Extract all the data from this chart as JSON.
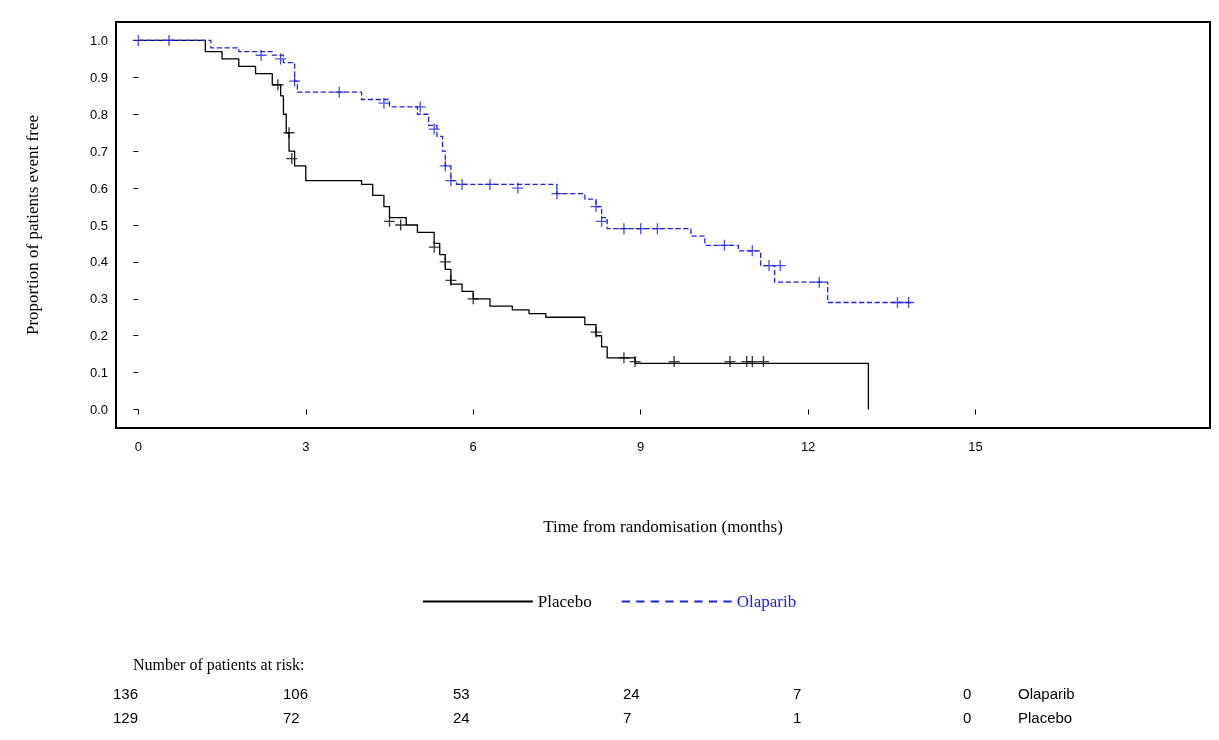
{
  "chart_data": {
    "type": "step",
    "xlabel": "Time from randomisation (months)",
    "ylabel": "Proportion of patients event free",
    "xlim": [
      -0.4,
      19.2
    ],
    "xticks": [
      0,
      3,
      6,
      9,
      12,
      15
    ],
    "ylim": [
      -0.05,
      1.05
    ],
    "yticks": [
      {
        "value": 0,
        "label": "0.0"
      },
      {
        "value": 0.1,
        "label": "0.1"
      },
      {
        "value": 0.2,
        "label": "0.2"
      },
      {
        "value": 0.3,
        "label": "0.3"
      },
      {
        "value": 0.4,
        "label": "0.4"
      },
      {
        "value": 0.5,
        "label": "0.5"
      },
      {
        "value": 0.6,
        "label": "0.6"
      },
      {
        "value": 0.7,
        "label": "0.7"
      },
      {
        "value": 0.8,
        "label": "0.8"
      },
      {
        "value": 0.9,
        "label": "0.9"
      },
      {
        "value": 1,
        "label": "1.0"
      }
    ],
    "grid": false,
    "legend": "bottom",
    "series": [
      {
        "name": "Placebo",
        "color": "#000000",
        "line_style": "solid",
        "marker": "none",
        "x": [
          0,
          1.2,
          1.5,
          1.8,
          2.1,
          2.4,
          2.55,
          2.6,
          2.65,
          2.7,
          2.8,
          3.0,
          4.0,
          4.2,
          4.4,
          4.5,
          4.8,
          5.0,
          5.3,
          5.4,
          5.5,
          5.6,
          5.8,
          6.0,
          6.3,
          6.7,
          7.0,
          7.3,
          8.0,
          8.2,
          8.3,
          8.4,
          8.9,
          13.08,
          13.08
        ],
        "values": [
          1,
          0.97,
          0.95,
          0.93,
          0.91,
          0.88,
          0.85,
          0.8,
          0.75,
          0.7,
          0.66,
          0.62,
          0.61,
          0.58,
          0.55,
          0.52,
          0.5,
          0.48,
          0.45,
          0.42,
          0.38,
          0.34,
          0.32,
          0.3,
          0.28,
          0.27,
          0.26,
          0.25,
          0.23,
          0.2,
          0.17,
          0.14,
          0.125,
          0.125,
          0
        ]
      },
      {
        "name": "Olaparib",
        "color": "#2222dd",
        "line_style": "dashed",
        "marker": "none",
        "x": [
          0,
          1.3,
          1.8,
          2.4,
          2.6,
          2.8,
          2.85,
          4.0,
          4.5,
          5.0,
          5.2,
          5.35,
          5.45,
          5.5,
          5.6,
          5.7,
          7.5,
          8.0,
          8.2,
          8.3,
          8.4,
          9.9,
          10.15,
          10.75,
          11.15,
          11.4,
          12.35,
          13.87
        ],
        "values": [
          1,
          0.98,
          0.97,
          0.96,
          0.94,
          0.89,
          0.86,
          0.84,
          0.82,
          0.8,
          0.77,
          0.74,
          0.7,
          0.66,
          0.62,
          0.61,
          0.585,
          0.57,
          0.55,
          0.52,
          0.49,
          0.47,
          0.445,
          0.43,
          0.39,
          0.345,
          0.29,
          0.29
        ]
      },
      {
        "type": "scatter",
        "color": "#000000",
        "marker": "cross",
        "x": [
          2.5,
          2.7,
          2.75,
          4.5,
          4.7,
          5.3,
          5.5,
          5.6,
          6.0,
          8.2,
          8.7,
          8.9,
          9.6,
          10.6,
          10.9,
          11.0,
          11.2
        ],
        "values": [
          0.88,
          0.75,
          0.68,
          0.51,
          0.5,
          0.44,
          0.4,
          0.35,
          0.3,
          0.21,
          0.14,
          0.13,
          0.13,
          0.13,
          0.13,
          0.13,
          0.13
        ]
      },
      {
        "type": "scatter",
        "color": "#2222dd",
        "marker": "cross",
        "x": [
          0,
          0.55,
          2.2,
          2.55,
          2.8,
          3.6,
          4.4,
          5.05,
          5.3,
          5.5,
          5.6,
          5.8,
          6.3,
          6.8,
          7.5,
          8.2,
          8.3,
          8.7,
          9.0,
          9.3,
          10.5,
          11.0,
          11.3,
          11.5,
          12.2,
          13.6,
          13.8
        ],
        "values": [
          1,
          1,
          0.96,
          0.95,
          0.89,
          0.86,
          0.83,
          0.82,
          0.76,
          0.66,
          0.62,
          0.61,
          0.61,
          0.6,
          0.585,
          0.55,
          0.51,
          0.49,
          0.49,
          0.49,
          0.445,
          0.43,
          0.39,
          0.39,
          0.345,
          0.29,
          0.29
        ]
      }
    ],
    "annotations": [
      "Number of patients at risk:",
      "136   106   53   24   7   0   Olaparib",
      "129   72   24   7   1   0   Placebo"
    ]
  }
}
